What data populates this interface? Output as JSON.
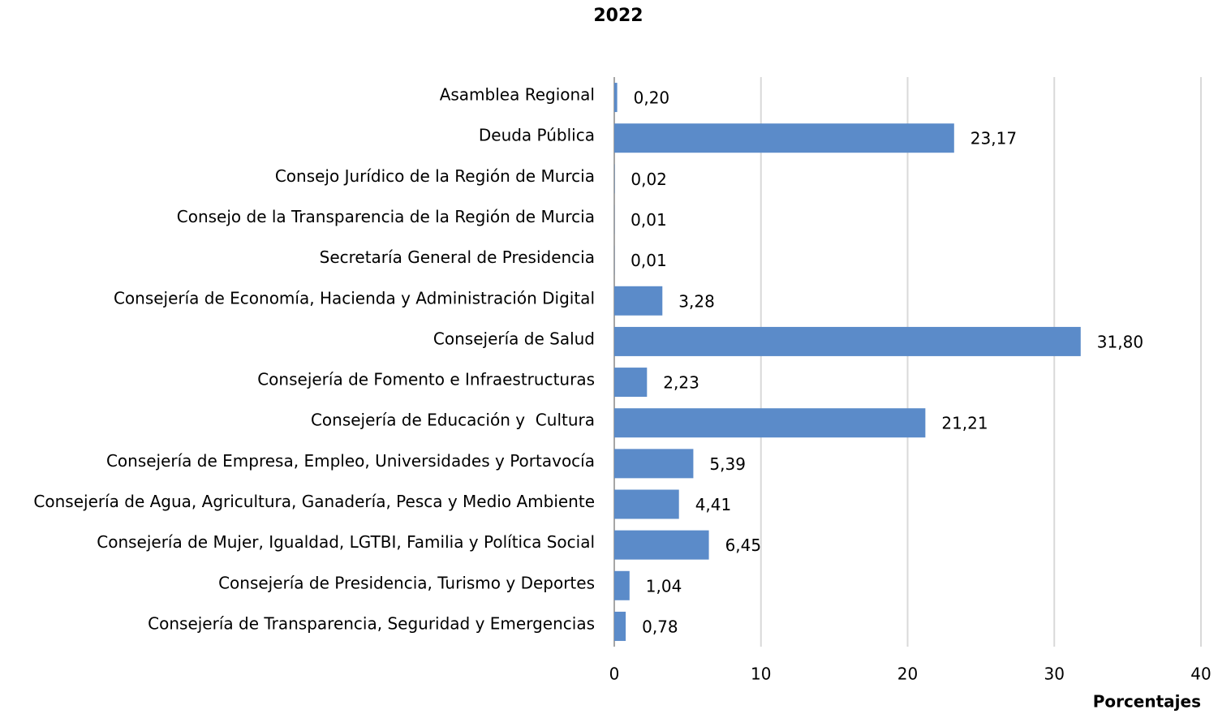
{
  "chart_data": {
    "type": "bar",
    "orientation": "horizontal",
    "title": "2022",
    "x_label": "Porcentajes",
    "categories": [
      "Asamblea Regional",
      "Deuda Pública",
      "Consejo Jurídico de la Región de Murcia",
      "Consejo de la Transparencia de la Región de Murcia",
      "Secretaría General de Presidencia",
      "Consejería de Economía, Hacienda y Administración Digital",
      "Consejería de Salud",
      "Consejería de Fomento e Infraestructuras",
      "Consejería de Educación y  Cultura",
      "Consejería de Empresa, Empleo, Universidades y Portavocía",
      "Consejería de Agua, Agricultura, Ganadería, Pesca y Medio Ambiente",
      "Consejería de Mujer, Igualdad, LGTBI, Familia y Política Social",
      "Consejería de Presidencia, Turismo y Deportes",
      "Consejería de Transparencia, Seguridad y Emergencias"
    ],
    "values": [
      0.2,
      23.17,
      0.02,
      0.01,
      0.01,
      3.28,
      31.8,
      2.23,
      21.21,
      5.39,
      4.41,
      6.45,
      1.04,
      0.78
    ],
    "value_labels": [
      "0,20",
      "23,17",
      "0,02",
      "0,01",
      "0,01",
      "3,28",
      "31,80",
      "2,23",
      "21,21",
      "5,39",
      "4,41",
      "6,45",
      "1,04",
      "0,78"
    ],
    "color": "#5b8bc9",
    "xlim": [
      0,
      40
    ],
    "xticks": [
      0,
      10,
      20,
      30,
      40
    ],
    "grid": true
  }
}
